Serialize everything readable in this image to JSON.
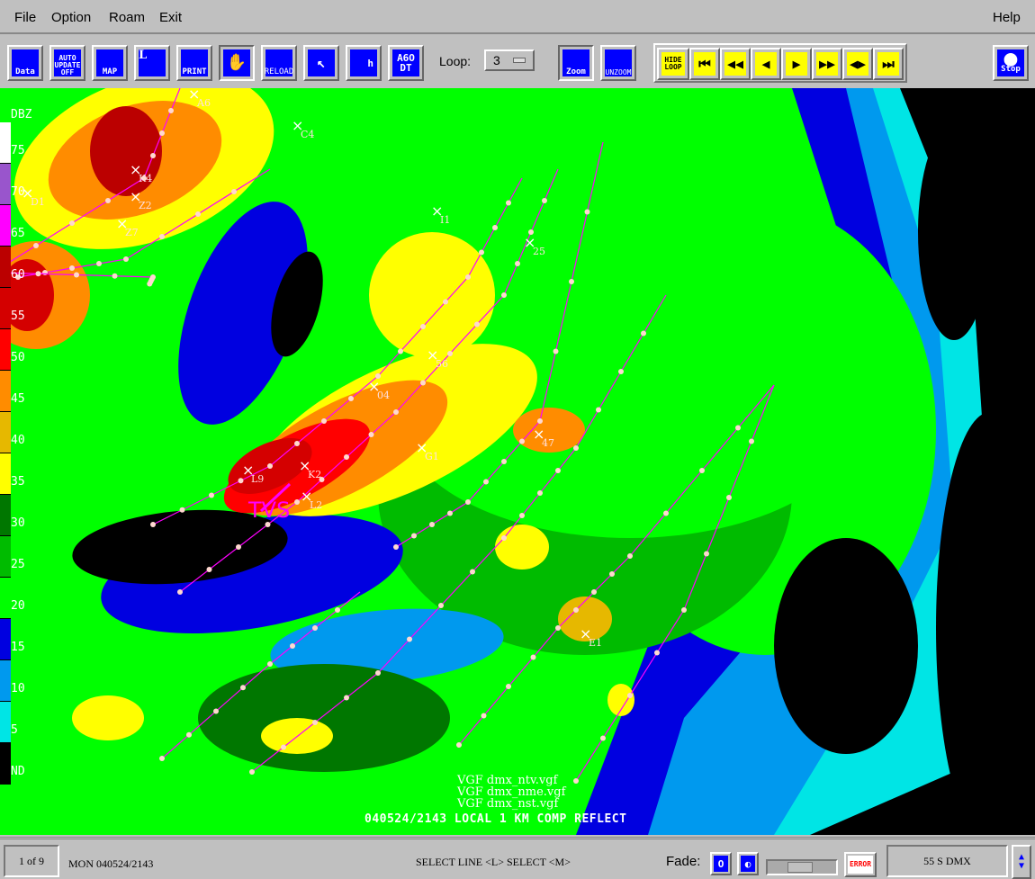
{
  "menu": {
    "file": "File",
    "option": "Option",
    "roam": "Roam",
    "exit": "Exit",
    "help": "Help"
  },
  "toolbar": {
    "data": "Data",
    "auto_update": "AUTO UPDATE OFF",
    "map": "MAP",
    "locator": "L",
    "print": "PRINT",
    "roam": "roam",
    "reload": "RELOAD",
    "cursor": "cursor",
    "cross_section": "h",
    "text": "A6O DT",
    "loop_label": "Loop:",
    "loop_value": "3",
    "zoom": "Zoom",
    "unzoom": "UNZOOM",
    "hide_loop": "HIDE LOOP",
    "stop": "Stop"
  },
  "legend": {
    "title": "DBZ",
    "levels": [
      {
        "label": "75",
        "color": "#ffffff"
      },
      {
        "label": "70",
        "color": "#9955cc"
      },
      {
        "label": "65",
        "color": "#ff00ff"
      },
      {
        "label": "60",
        "color": "#bb0000"
      },
      {
        "label": "55",
        "color": "#d40000"
      },
      {
        "label": "50",
        "color": "#ff0000"
      },
      {
        "label": "45",
        "color": "#ff8c00"
      },
      {
        "label": "40",
        "color": "#e6b800"
      },
      {
        "label": "35",
        "color": "#ffff00"
      },
      {
        "label": "30",
        "color": "#007700"
      },
      {
        "label": "25",
        "color": "#00bb00"
      },
      {
        "label": "20",
        "color": "#00ff00"
      },
      {
        "label": "15",
        "color": "#0000e0"
      },
      {
        "label": "10",
        "color": "#0099ee"
      },
      {
        "label": "5",
        "color": "#00e5e5"
      },
      {
        "label": "ND",
        "color": "#000000"
      }
    ]
  },
  "map": {
    "storm_labels": [
      "A6",
      "C4",
      "K4",
      "Z2",
      "Z7",
      "I1",
      "25",
      "56",
      "04",
      "G1",
      "L9",
      "K2",
      "L2",
      "47",
      "E1",
      "D1"
    ],
    "annotation": "TVS",
    "annotation_color": "#ff00ff",
    "track_color": "#ff00ff",
    "vgf_files": [
      "VGF dmx_ntv.vgf",
      "VGF dmx_nme.vgf",
      "VGF dmx_nst.vgf"
    ],
    "caption": "040524/2143 LOCAL  1 KM  COMP  REFLECT"
  },
  "status": {
    "frame": "1 of 9",
    "time": "MON 040524/2143",
    "mode": "SELECT LINE  <L> SELECT  <M>",
    "fade_label": "Fade:",
    "error": "ERROR",
    "radar": "55 S DMX"
  }
}
